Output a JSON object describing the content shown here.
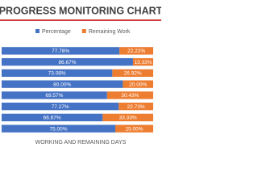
{
  "chart_data": {
    "type": "stacked-bar-horizontal",
    "title": "PROGRESS MONITORING CHART",
    "x_axis_label": "WORKING AND REMAINING DAYS",
    "categories": [
      null,
      null,
      null,
      null,
      null,
      null,
      null,
      null
    ],
    "xlim": [
      0,
      100
    ],
    "legend": "top",
    "series": [
      {
        "name": "Percentage",
        "color": "#4472c4",
        "values": [
          77.78,
          86.67,
          73.08,
          80.0,
          69.57,
          77.27,
          66.67,
          75.0
        ],
        "value_labels": [
          "77.78%",
          "86.67%",
          "73.08%",
          "80.00%",
          "69.57%",
          "77.27%",
          "66.67%",
          "75.00%"
        ]
      },
      {
        "name": "Remaining Work",
        "color": "#ed7d31",
        "values": [
          22.22,
          13.33,
          26.92,
          20.0,
          30.43,
          22.73,
          33.33,
          25.0
        ],
        "value_labels": [
          "22.22%",
          "13.33%",
          "26.92%",
          "20.00%",
          "30.43%",
          "22.73%",
          "33.33%",
          "25.00%"
        ]
      }
    ]
  }
}
